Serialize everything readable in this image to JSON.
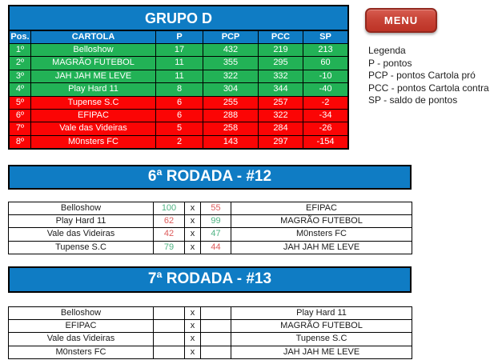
{
  "group_table": {
    "title": "GRUPO D",
    "columns": [
      "Pos.",
      "CARTOLA",
      "P",
      "PCP",
      "PCC",
      "SP"
    ],
    "rows": [
      {
        "pos": "1º",
        "team": "Belloshow",
        "p": "17",
        "pcp": "432",
        "pcc": "219",
        "sp": "213",
        "zone": "green"
      },
      {
        "pos": "2º",
        "team": "MAGRÃO FUTEBOL",
        "p": "11",
        "pcp": "355",
        "pcc": "295",
        "sp": "60",
        "zone": "green"
      },
      {
        "pos": "3º",
        "team": "JAH JAH ME LEVE",
        "p": "11",
        "pcp": "322",
        "pcc": "332",
        "sp": "-10",
        "zone": "green"
      },
      {
        "pos": "4º",
        "team": "Play Hard 11",
        "p": "8",
        "pcp": "304",
        "pcc": "344",
        "sp": "-40",
        "zone": "green"
      },
      {
        "pos": "5º",
        "team": "Tupense S.C",
        "p": "6",
        "pcp": "255",
        "pcc": "257",
        "sp": "-2",
        "zone": "red"
      },
      {
        "pos": "6º",
        "team": "EFIPAC",
        "p": "6",
        "pcp": "288",
        "pcc": "322",
        "sp": "-34",
        "zone": "red"
      },
      {
        "pos": "7º",
        "team": "Vale das Videiras",
        "p": "5",
        "pcp": "258",
        "pcc": "284",
        "sp": "-26",
        "zone": "red"
      },
      {
        "pos": "8º",
        "team": "M0nsters FC",
        "p": "2",
        "pcp": "143",
        "pcc": "297",
        "sp": "-154",
        "zone": "red"
      }
    ]
  },
  "menu_button": {
    "label": "MENU"
  },
  "legend": {
    "lines": [
      "Legenda",
      "P - pontos",
      "PCP - pontos Cartola pró",
      "PCC - pontos Cartola contra",
      "SP - saldo de pontos"
    ]
  },
  "rounds": [
    {
      "title": "6ª RODADA - #12",
      "matches": [
        {
          "home": "Belloshow",
          "home_score": "100",
          "home_result": "win",
          "separator": "x",
          "away_score": "55",
          "away_result": "loss",
          "away": "EFIPAC"
        },
        {
          "home": "Play Hard 11",
          "home_score": "62",
          "home_result": "loss",
          "separator": "x",
          "away_score": "99",
          "away_result": "win",
          "away": "MAGRÃO FUTEBOL"
        },
        {
          "home": "Vale das Videiras",
          "home_score": "42",
          "home_result": "loss",
          "separator": "x",
          "away_score": "47",
          "away_result": "win",
          "away": "M0nsters FC"
        },
        {
          "home": "Tupense S.C",
          "home_score": "79",
          "home_result": "win",
          "separator": "x",
          "away_score": "44",
          "away_result": "loss",
          "away": "JAH JAH ME LEVE"
        }
      ]
    },
    {
      "title": "7ª RODADA - #13",
      "matches": [
        {
          "home": "Belloshow",
          "home_score": "",
          "home_result": "",
          "separator": "x",
          "away_score": "",
          "away_result": "",
          "away": "Play Hard 11"
        },
        {
          "home": "EFIPAC",
          "home_score": "",
          "home_result": "",
          "separator": "x",
          "away_score": "",
          "away_result": "",
          "away": "MAGRÃO FUTEBOL"
        },
        {
          "home": "Vale das Videiras",
          "home_score": "",
          "home_result": "",
          "separator": "x",
          "away_score": "",
          "away_result": "",
          "away": "Tupense S.C"
        },
        {
          "home": "M0nsters FC",
          "home_score": "",
          "home_result": "",
          "separator": "x",
          "away_score": "",
          "away_result": "",
          "away": "JAH JAH ME LEVE"
        }
      ]
    }
  ],
  "colors": {
    "header_blue": "#0F7CC4",
    "qualify_green": "#22B256",
    "eliminate_red": "#FB0505",
    "score_win_green": "#4FB383",
    "score_loss_red": "#DD5B5B",
    "menu_red": "#C63B2D"
  }
}
